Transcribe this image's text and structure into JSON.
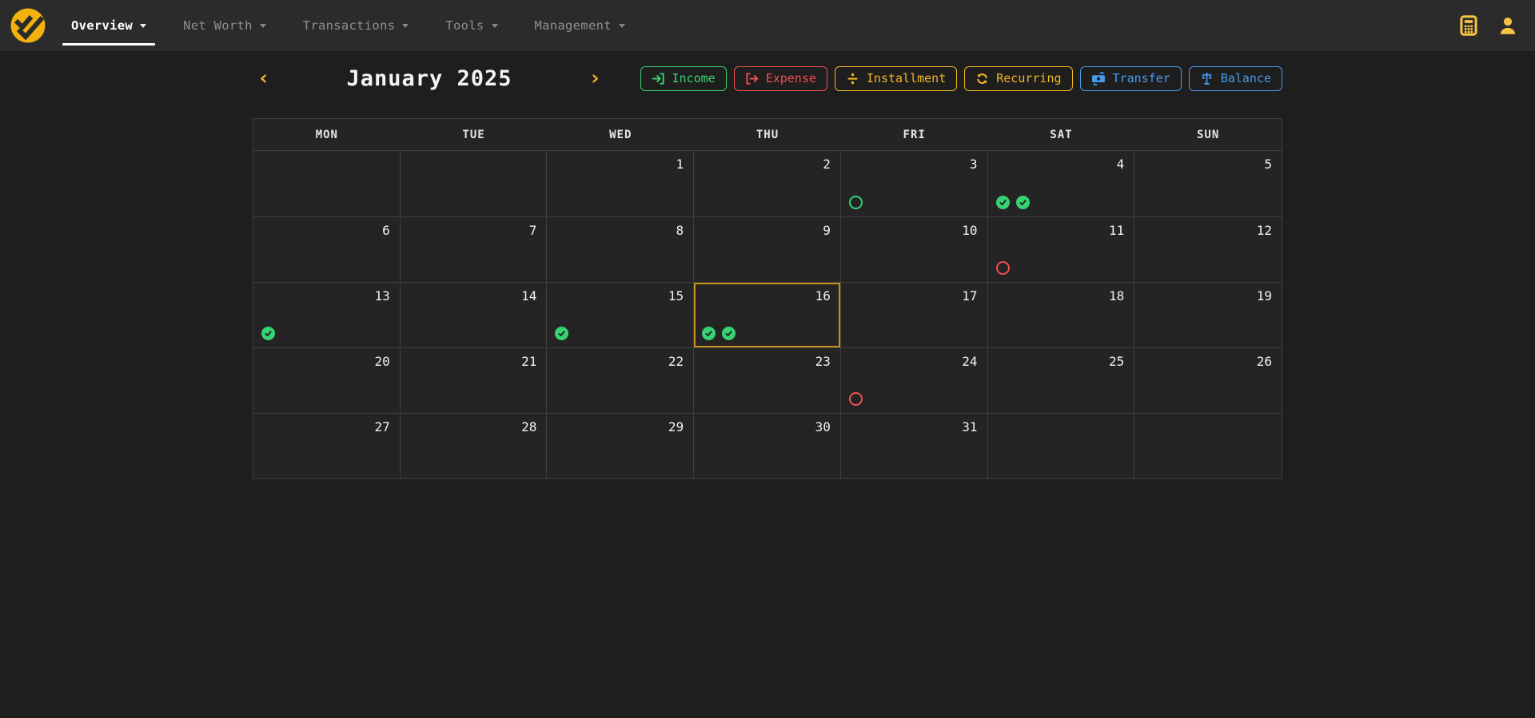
{
  "colors": {
    "accent_gold": "#f0b429",
    "green": "#36d373",
    "red": "#ef5050",
    "blue": "#4a9aec",
    "today_border": "#c29117",
    "navbar_bg": "#2b2b2b",
    "page_bg": "#1e1e1e"
  },
  "navbar": {
    "items": [
      {
        "label": "Overview",
        "active": true
      },
      {
        "label": "Net Worth",
        "active": false
      },
      {
        "label": "Transactions",
        "active": false
      },
      {
        "label": "Tools",
        "active": false
      },
      {
        "label": "Management",
        "active": false
      }
    ],
    "right_icons": [
      "calculator-icon",
      "user-icon"
    ]
  },
  "calendar": {
    "month_title": "January 2025",
    "prev_icon": "‹",
    "next_icon": "›",
    "legend": [
      {
        "id": "income",
        "label": "Income",
        "color": "#36d373"
      },
      {
        "id": "expense",
        "label": "Expense",
        "color": "#ef5050"
      },
      {
        "id": "installment",
        "label": "Installment",
        "color": "#f3b71f"
      },
      {
        "id": "recurring",
        "label": "Recurring",
        "color": "#f3b71f"
      },
      {
        "id": "transfer",
        "label": "Transfer",
        "color": "#4a9aec"
      },
      {
        "id": "balance",
        "label": "Balance",
        "color": "#4a9aec"
      }
    ],
    "day_headers": [
      "MON",
      "TUE",
      "WED",
      "THU",
      "FRI",
      "SAT",
      "SUN"
    ],
    "today": "16",
    "weeks": [
      [
        {
          "day": ""
        },
        {
          "day": ""
        },
        {
          "day": "1"
        },
        {
          "day": "2"
        },
        {
          "day": "3",
          "icons": [
            "open-circle-green"
          ]
        },
        {
          "day": "4",
          "icons": [
            "check-green",
            "check-green"
          ]
        },
        {
          "day": "5"
        }
      ],
      [
        {
          "day": "6"
        },
        {
          "day": "7"
        },
        {
          "day": "8"
        },
        {
          "day": "9"
        },
        {
          "day": "10"
        },
        {
          "day": "11",
          "icons": [
            "open-circle-red"
          ]
        },
        {
          "day": "12"
        }
      ],
      [
        {
          "day": "13",
          "icons": [
            "check-green"
          ]
        },
        {
          "day": "14"
        },
        {
          "day": "15",
          "icons": [
            "check-green"
          ]
        },
        {
          "day": "16",
          "icons": [
            "check-green",
            "check-green"
          ]
        },
        {
          "day": "17"
        },
        {
          "day": "18"
        },
        {
          "day": "19"
        }
      ],
      [
        {
          "day": "20"
        },
        {
          "day": "21"
        },
        {
          "day": "22"
        },
        {
          "day": "23"
        },
        {
          "day": "24",
          "icons": [
            "open-circle-red"
          ]
        },
        {
          "day": "25"
        },
        {
          "day": "26"
        }
      ],
      [
        {
          "day": "27"
        },
        {
          "day": "28"
        },
        {
          "day": "29"
        },
        {
          "day": "30"
        },
        {
          "day": "31"
        },
        {
          "day": ""
        },
        {
          "day": ""
        }
      ]
    ]
  }
}
